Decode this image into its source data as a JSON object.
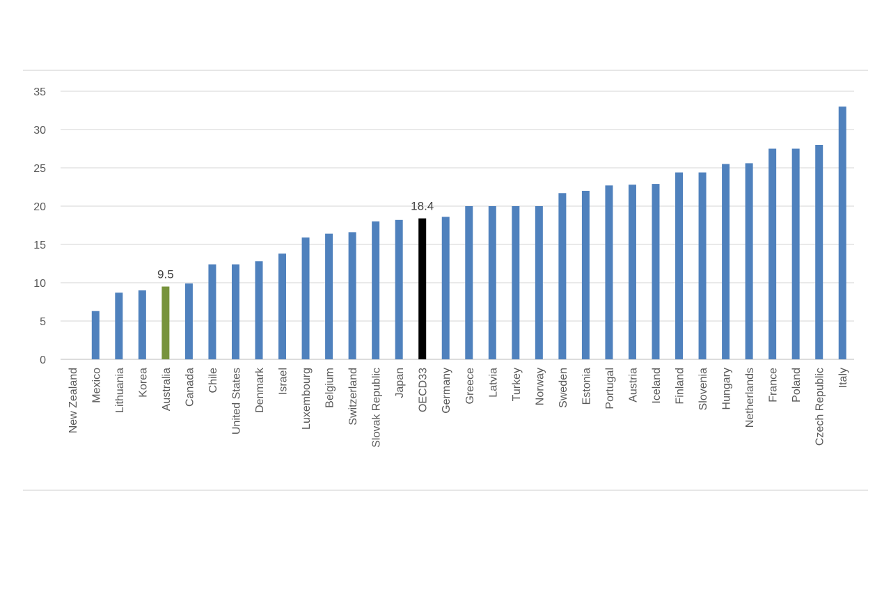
{
  "chart_data": {
    "type": "bar",
    "title": "",
    "xlabel": "",
    "ylabel": "",
    "ylim": [
      0,
      35
    ],
    "yticks": [
      0,
      5,
      10,
      15,
      20,
      25,
      30,
      35
    ],
    "grid": true,
    "categories": [
      "New Zealand",
      "Mexico",
      "Lithuania",
      "Korea",
      "Australia",
      "Canada",
      "Chile",
      "United States",
      "Denmark",
      "Israel",
      "Luxembourg",
      "Belgium",
      "Switzerland",
      "Slovak Republic",
      "Japan",
      "OECD33",
      "Germany",
      "Greece",
      "Latvia",
      "Turkey",
      "Norway",
      "Sweden",
      "Estonia",
      "Portugal",
      "Austria",
      "Iceland",
      "Finland",
      "Slovenia",
      "Hungary",
      "Netherlands",
      "France",
      "Poland",
      "Czech Republic",
      "Italy"
    ],
    "values": [
      0,
      6.3,
      8.7,
      9.0,
      9.5,
      9.9,
      12.4,
      12.4,
      12.8,
      13.8,
      15.9,
      16.4,
      16.6,
      18.0,
      18.2,
      18.4,
      18.6,
      20.0,
      20.0,
      20.0,
      20.0,
      21.7,
      22.0,
      22.7,
      22.8,
      22.9,
      24.4,
      24.4,
      25.5,
      25.6,
      27.5,
      27.5,
      28.0,
      33.0
    ],
    "colors": {
      "default": "#4f81bd",
      "Australia": "#77933c",
      "OECD33": "#000000",
      "grid": "#e3e3e3",
      "axis": "#d0d0d0"
    },
    "data_labels": [
      {
        "category": "Australia",
        "text": "9.5"
      },
      {
        "category": "OECD33",
        "text": "18.4"
      }
    ]
  }
}
